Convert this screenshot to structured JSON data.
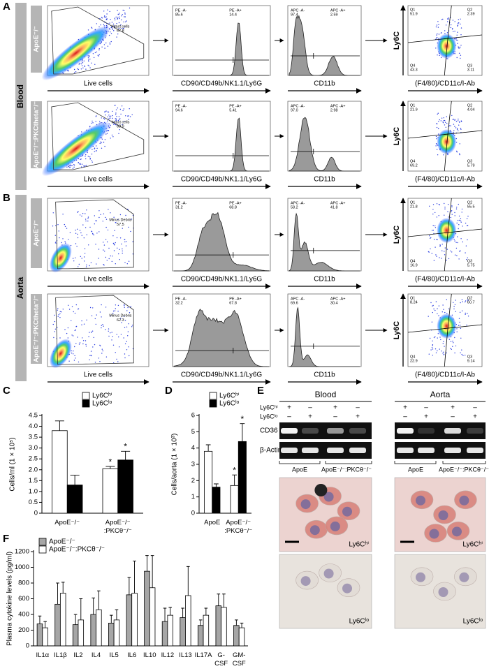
{
  "panel_labels": [
    "A",
    "B",
    "C",
    "D",
    "E",
    "F"
  ],
  "flow": {
    "x_labels": [
      "Live cells",
      "CD90/CD49b/NK1.1/Ly6G",
      "CD11b",
      "(F4/80)/CD11c/I-Ab"
    ],
    "y_label": "Ly6C",
    "sections": [
      {
        "tissue": "Blood",
        "rows": [
          {
            "label": "ApoE⁻/⁻",
            "gate": [
              "Intact cells",
              "67.8"
            ],
            "hist1": [
              "PE -A-",
              "85.6",
              "PE -A+",
              "14.4"
            ],
            "hist2": [
              "APC -A-",
              "97.4",
              "APC -A+",
              "2.59"
            ],
            "quad": [
              "Q1",
              "51.9",
              "Q2",
              "2.39",
              "Q3",
              "3.11",
              "Q4",
              "43.3"
            ]
          },
          {
            "label": "ApoE⁻/⁻:PKCtheta⁻/⁻",
            "gate": [
              "Intact cells",
              "68.9"
            ],
            "hist1": [
              "PE -A-",
              "94.6",
              "PE -A+",
              "5.41"
            ],
            "hist2": [
              "APC -A-",
              "97.0",
              "APC -A+",
              "2.98"
            ],
            "quad": [
              "Q1",
              "21.9",
              "Q2",
              "4.04",
              "Q3",
              "5.79",
              "Q4",
              "69.2"
            ]
          }
        ]
      },
      {
        "tissue": "Aorta",
        "rows": [
          {
            "label": "ApoE⁻/⁻",
            "gate": [
              "Minus Debris",
              "57.5"
            ],
            "hist1": [
              "PE -A-",
              "31.2",
              "PE -A+",
              "68.8"
            ],
            "hist2": [
              "APC -A-",
              "58.2",
              "APC -A+",
              "41.8"
            ],
            "quad": [
              "Q1",
              "21.8",
              "Q2",
              "55.5",
              "Q3",
              "5.75",
              "Q4",
              "16.9"
            ]
          },
          {
            "label": "ApoE⁻/⁻:PKCtheta⁻/⁻",
            "gate": [
              "Minus Debris",
              "62.3"
            ],
            "hist1": [
              "PE -A-",
              "32.2",
              "PE -A+",
              "67.8"
            ],
            "hist2": [
              "APC -A-",
              "69.6",
              "APC -A+",
              "30.4"
            ],
            "quad": [
              "Q1",
              "8.24",
              "Q2",
              "60.7",
              "Q3",
              "9.14",
              "Q4",
              "22.9"
            ]
          }
        ]
      }
    ]
  },
  "blots": {
    "tissues": [
      "Blood",
      "Aorta"
    ],
    "row_labels": [
      "Ly6Cʰⁱ",
      "Ly6Cˡᵒ"
    ],
    "signs": [
      [
        "+",
        "–",
        "+",
        "–"
      ],
      [
        "–",
        "+",
        "–",
        "+"
      ]
    ],
    "bands": [
      "CD36",
      "β-Actin"
    ],
    "groups": [
      "ApoE",
      "ApoE⁻/⁻:PKCθ⁻/⁻"
    ],
    "image_labels": [
      "Ly6Cʰⁱ",
      "Ly6Cˡᵒ"
    ]
  },
  "chart_data": [
    {
      "type": "bar",
      "y_label": "Cells/ml (1 × 10⁵)",
      "categories": [
        "ApoE⁻/⁻",
        "ApoE⁻/⁻:PKCθ⁻/⁻"
      ],
      "series": [
        {
          "name": "Ly6Cʰⁱ",
          "color": "#ffffff",
          "values": [
            3.8,
            2.05
          ],
          "errors": [
            0.45,
            0.1
          ],
          "significance": [
            null,
            "*"
          ]
        },
        {
          "name": "Ly6Cˡᵒ",
          "color": "#000000",
          "values": [
            1.3,
            2.45
          ],
          "errors": [
            0.45,
            0.4
          ],
          "significance": [
            null,
            "*"
          ]
        }
      ],
      "ylim": [
        0,
        4.5
      ],
      "yticks": [
        0,
        0.5,
        {
          "value": 1,
          "label": "1.0"
        },
        1.5,
        {
          "value": 2,
          "label": "2.0"
        },
        2.5,
        {
          "value": 3,
          "label": "3.0"
        },
        3.5,
        {
          "value": 4,
          "label": "4.0"
        },
        4.5
      ]
    },
    {
      "type": "bar",
      "y_label": "Cells/aorta (1 × 10³)",
      "categories": [
        "ApoE",
        "ApoE⁻/⁻:PKCθ⁻/⁻"
      ],
      "series": [
        {
          "name": "Ly6Cʰⁱ",
          "color": "#ffffff",
          "values": [
            3.8,
            1.7
          ],
          "errors": [
            0.4,
            0.65
          ],
          "significance": [
            null,
            "*"
          ]
        },
        {
          "name": "Ly6Cˡᵒ",
          "color": "#000000",
          "values": [
            1.6,
            4.4
          ],
          "errors": [
            0.2,
            1.1
          ],
          "significance": [
            null,
            "*"
          ]
        }
      ],
      "ylim": [
        0,
        6
      ],
      "yticks": [
        0,
        1,
        2,
        3,
        4,
        5,
        6
      ]
    },
    {
      "type": "bar",
      "y_label": "Plasma cytokine levels (pg/ml)",
      "categories": [
        "IL1α",
        "IL1β",
        "IL2",
        "IL4",
        "IL5",
        "IL6",
        "IL10",
        "IL12",
        "IL13",
        "IL17A",
        "G-CSF",
        "GM-CSF"
      ],
      "series": [
        {
          "name": "ApoE⁻/⁻",
          "color": "#a6a6a6",
          "values": [
            280,
            530,
            270,
            400,
            290,
            650,
            950,
            310,
            360,
            260,
            510,
            260
          ],
          "errors": [
            100,
            270,
            130,
            210,
            100,
            220,
            200,
            170,
            120,
            70,
            150,
            70
          ]
        },
        {
          "name": "ApoE⁻/⁻:PKCθ⁻/⁻",
          "color": "#ffffff",
          "values": [
            230,
            670,
            330,
            460,
            330,
            670,
            740,
            390,
            640,
            390,
            490,
            230
          ],
          "errors": [
            80,
            140,
            270,
            240,
            130,
            410,
            410,
            100,
            370,
            90,
            170,
            60
          ]
        }
      ],
      "ylim": [
        0,
        1200
      ],
      "yticks": [
        0,
        200,
        400,
        600,
        800,
        1000,
        1200
      ]
    }
  ]
}
